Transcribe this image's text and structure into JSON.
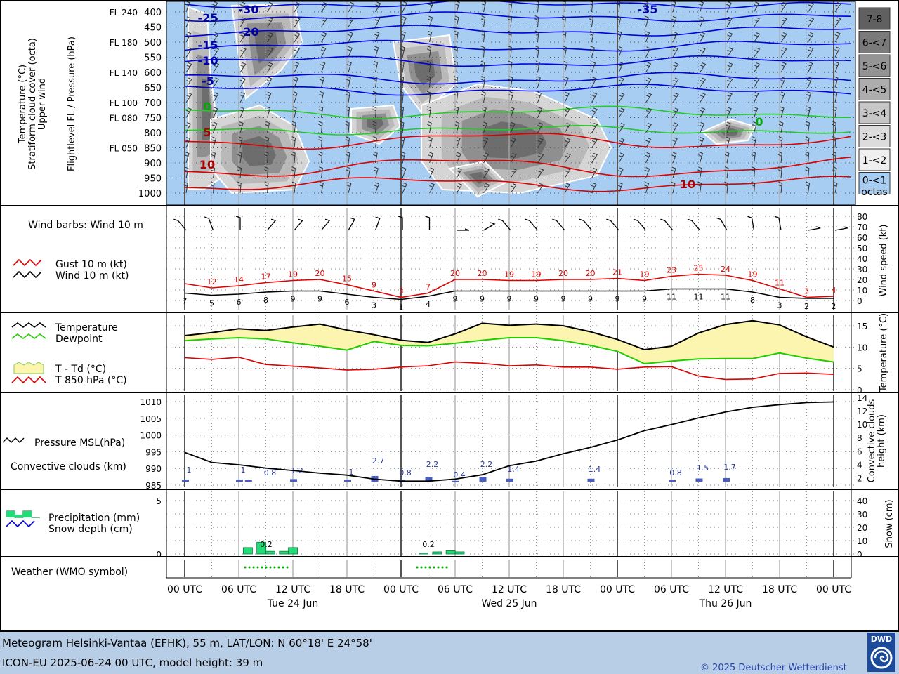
{
  "upper_panel": {
    "side_title_lines": [
      "Temperature (°C)",
      "Stratiform cloud cover (octa)",
      "Upper wind"
    ],
    "axis_title": "Flightlevel FL / Pressure (hPa)",
    "pressure_ticks": [
      "400",
      "450",
      "500",
      "550",
      "600",
      "650",
      "700",
      "750",
      "800",
      "850",
      "900",
      "950",
      "1000"
    ],
    "fl_ticks": [
      {
        "label": "FL 240",
        "hpa": "400"
      },
      {
        "label": "FL 180",
        "hpa": "500"
      },
      {
        "label": "FL 140",
        "hpa": "600"
      },
      {
        "label": "FL 100",
        "hpa": "700"
      },
      {
        "label": "FL 080",
        "hpa": "750"
      },
      {
        "label": "FL 050",
        "hpa": "850"
      }
    ],
    "cloud_legend": [
      {
        "label": "7-8",
        "color": "#606060"
      },
      {
        "label": "6-<7",
        "color": "#7a7a7a"
      },
      {
        "label": "5-<6",
        "color": "#949494"
      },
      {
        "label": "4-<5",
        "color": "#adadad"
      },
      {
        "label": "3-<4",
        "color": "#c6c6c6"
      },
      {
        "label": "2-<3",
        "color": "#dcdcdc"
      },
      {
        "label": "1-<2",
        "color": "#efefef"
      },
      {
        "label": "0-<1",
        "color": "#a8cdf2"
      }
    ],
    "cloud_legend_unit": "octas",
    "isotherm_labels": [
      {
        "text": "-30",
        "color": "#0000aa"
      },
      {
        "text": "-25",
        "color": "#0000aa"
      },
      {
        "text": "-20",
        "color": "#0000aa"
      },
      {
        "text": "-15",
        "color": "#0000aa"
      },
      {
        "text": "-10",
        "color": "#0000aa"
      },
      {
        "text": "-5",
        "color": "#0000aa"
      },
      {
        "text": "-35",
        "color": "#0000aa"
      },
      {
        "text": "0",
        "color": "#00aa00"
      },
      {
        "text": "0",
        "color": "#00aa00"
      },
      {
        "text": "5",
        "color": "#aa0000"
      },
      {
        "text": "10",
        "color": "#aa0000"
      },
      {
        "text": "10",
        "color": "#aa0000"
      }
    ],
    "colors": {
      "sky": "#a8cdf2",
      "cold": "#0000dd",
      "zero": "#22cc22",
      "warm": "#dd0000"
    }
  },
  "wind_panel": {
    "title": "Wind barbs: Wind 10 m",
    "legend_gust": "Gust 10 m (kt)",
    "legend_wind": "Wind 10 m (kt)",
    "axis_title": "Wind speed (kt)",
    "ticks": [
      "0",
      "10",
      "20",
      "30",
      "40",
      "50",
      "60",
      "70",
      "80"
    ],
    "gust_labels": [
      "12",
      "14",
      "17",
      "19",
      "20",
      "15",
      "9",
      "3",
      "7",
      "20",
      "20",
      "19",
      "19",
      "20",
      "20",
      "21",
      "19",
      "23",
      "25",
      "24",
      "19",
      "11",
      "3",
      "4"
    ],
    "wind_labels": [
      "7",
      "5",
      "6",
      "8",
      "9",
      "9",
      "6",
      "3",
      "1",
      "4",
      "9",
      "9",
      "9",
      "9",
      "9",
      "9",
      "9",
      "9",
      "11",
      "11",
      "11",
      "8",
      "3",
      "2",
      "2"
    ],
    "colors": {
      "gust": "#dd0000",
      "wind": "#000000"
    }
  },
  "temp_panel": {
    "legend_temp": "Temperature",
    "legend_dew": "Dewpoint",
    "legend_spread": "T - Td (°C)",
    "legend_t850": "T 850 hPa (°C)",
    "axis_title": "Temperature (°C)",
    "ticks": [
      "0",
      "5",
      "10",
      "15"
    ],
    "colors": {
      "temp": "#000000",
      "dew": "#22cc00",
      "spread": "#fbf5b0",
      "t850": "#dd0000"
    }
  },
  "pressure_panel": {
    "legend_pressure": "Pressure MSL(hPa)",
    "legend_convective": "Convective clouds (km)",
    "left_ticks": [
      "985",
      "990",
      "995",
      "1000",
      "1005",
      "1010"
    ],
    "right_ticks": [
      "2",
      "4",
      "6",
      "8",
      "10",
      "12",
      "14"
    ],
    "right_axis_title_lines": [
      "Convective clouds",
      "height (km)"
    ],
    "cloud_labels": [
      "1",
      "1",
      "0.8",
      "1.2",
      "1",
      "2.7",
      "0.8",
      "2.2",
      "0.4",
      "2.2",
      "1.4",
      "1.4",
      "0.8",
      "1.5",
      "1.7"
    ],
    "colors": {
      "pressure": "#000000",
      "conv": "#4a5ec0",
      "label": "#2a3a99"
    }
  },
  "precip_panel": {
    "legend_precip": "Precipitation (mm)",
    "legend_snow": "Snow depth (cm)",
    "left_ticks": [
      "0",
      "5"
    ],
    "right_ticks": [
      "0",
      "10",
      "20",
      "30",
      "40"
    ],
    "axis_title": "Snow (cm)",
    "precip_labels": [
      "0.2",
      "0.2"
    ],
    "colors": {
      "precip": "#22dd77",
      "snow": "#0000dd"
    }
  },
  "weather_panel": {
    "title": "Weather (WMO symbol)",
    "colors": {
      "rain_dots": "#00aa00"
    }
  },
  "time_axis": {
    "labels": [
      "00 UTC",
      "06 UTC",
      "12 UTC",
      "18 UTC",
      "00 UTC",
      "06 UTC",
      "12 UTC",
      "18 UTC",
      "00 UTC",
      "06 UTC",
      "12 UTC",
      "18 UTC",
      "00 UTC"
    ],
    "days": [
      "Tue 24 Jun",
      "Wed 25 Jun",
      "Thu 26 Jun"
    ]
  },
  "footer": {
    "line1": "Meteogram Helsinki-Vantaa (EFHK), 55 m, LAT/LON: N 60°18' E 24°58'",
    "line2": "ICON-EU 2025-06-24 00 UTC, model height: 39 m",
    "copyright": "© 2025 Deutscher Wetterdienst",
    "logo_text": "DWD",
    "colors": {
      "bg": "#b8cde6",
      "copyright": "#2244aa",
      "logo": "#1a4a99"
    }
  },
  "chart_data": [
    {
      "type": "line",
      "x": [
        0,
        3,
        6,
        9,
        12,
        15,
        18,
        21,
        24,
        27,
        30,
        33,
        36,
        39,
        42,
        45,
        48,
        51,
        54,
        57,
        60,
        63,
        66,
        69,
        72
      ],
      "series": [
        {
          "name": "Wind 10 m (kt)",
          "values": [
            7,
            5,
            6,
            8,
            9,
            9,
            6,
            3,
            1,
            4,
            9,
            9,
            9,
            9,
            9,
            9,
            9,
            9,
            11,
            11,
            11,
            8,
            3,
            2,
            2
          ]
        },
        {
          "name": "Gust 10 m (kt)",
          "values": [
            16,
            12,
            14,
            17,
            19,
            20,
            15,
            9,
            3,
            7,
            20,
            20,
            19,
            19,
            20,
            20,
            21,
            19,
            23,
            25,
            24,
            19,
            11,
            3,
            4
          ]
        }
      ],
      "ylim": [
        0,
        80
      ]
    },
    {
      "type": "line",
      "x": [
        0,
        3,
        6,
        9,
        12,
        15,
        18,
        21,
        24,
        27,
        30,
        33,
        36,
        39,
        42,
        45,
        48,
        51,
        54,
        57,
        60,
        63,
        66,
        69,
        72
      ],
      "series": [
        {
          "name": "Temperature",
          "values": [
            12.7,
            13.4,
            14.3,
            13.9,
            14.7,
            15.4,
            14.0,
            12.9,
            11.6,
            11.1,
            13.1,
            15.6,
            15.1,
            15.4,
            15.0,
            13.6,
            11.8,
            9.4,
            10.2,
            13.3,
            15.3,
            16.2,
            15.2,
            12.4,
            10.0
          ]
        },
        {
          "name": "Dewpoint",
          "values": [
            11.5,
            11.9,
            12.2,
            11.9,
            11.0,
            10.2,
            9.3,
            11.3,
            10.4,
            10.3,
            10.9,
            11.6,
            12.2,
            12.2,
            11.5,
            10.4,
            9.0,
            6.1,
            6.7,
            7.2,
            7.3,
            7.3,
            8.6,
            7.4,
            6.5
          ]
        },
        {
          "name": "T 850 hPa (°C)",
          "values": [
            7.5,
            7.1,
            7.6,
            5.9,
            5.5,
            5.1,
            4.6,
            4.8,
            5.3,
            5.6,
            6.5,
            6.2,
            5.6,
            5.8,
            5.3,
            5.3,
            4.8,
            5.3,
            5.4,
            3.2,
            2.4,
            2.5,
            3.8,
            3.9,
            3.6
          ]
        }
      ],
      "ylim": [
        0,
        17.5
      ]
    },
    {
      "type": "line",
      "x": [
        0,
        3,
        6,
        9,
        12,
        15,
        18,
        21,
        24,
        27,
        30,
        33,
        36,
        39,
        42,
        45,
        48,
        51,
        54,
        57,
        60,
        63,
        66,
        69,
        72
      ],
      "series": [
        {
          "name": "Pressure MSL(hPa)",
          "values": [
            994.8,
            991.8,
            991.1,
            990.1,
            989.4,
            988.6,
            988.0,
            986.8,
            986.2,
            986.2,
            986.8,
            988.1,
            990.8,
            992.2,
            994.4,
            996.3,
            998.5,
            1001.3,
            1003.1,
            1005.1,
            1006.9,
            1008.3,
            1009.1,
            1009.7,
            1009.9
          ]
        }
      ],
      "ylim": [
        984.5,
        1011
      ]
    }
  ]
}
